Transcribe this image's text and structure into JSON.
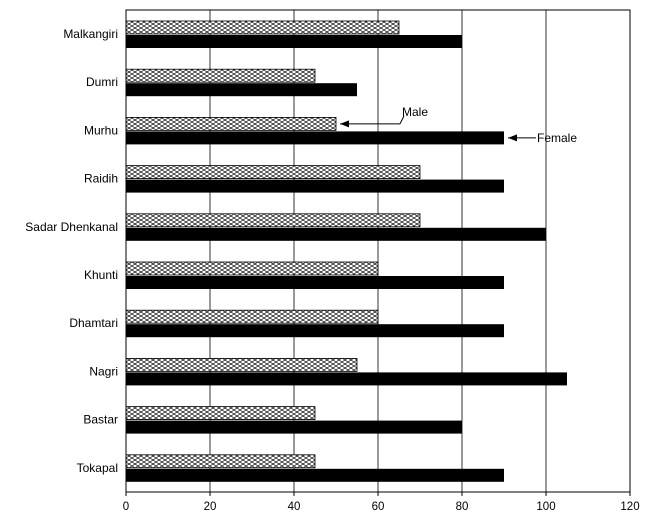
{
  "chart_data": {
    "type": "bar",
    "orientation": "horizontal",
    "categories": [
      "Malkangiri",
      "Dumri",
      "Murhu",
      "Raidih",
      "Sadar Dhenkanal",
      "Khunti",
      "Dhamtari",
      "Nagri",
      "Bastar",
      "Tokapal"
    ],
    "series": [
      {
        "name": "Male",
        "values": [
          65,
          45,
          50,
          70,
          70,
          60,
          60,
          55,
          45,
          45
        ],
        "fill": "pattern",
        "color": "#000000"
      },
      {
        "name": "Female",
        "values": [
          80,
          55,
          90,
          90,
          100,
          90,
          90,
          105,
          80,
          90
        ],
        "fill": "solid",
        "color": "#000000"
      }
    ],
    "xlim": [
      0,
      120
    ],
    "xticks": [
      0,
      20,
      40,
      60,
      80,
      100,
      120
    ],
    "grid": "vertical",
    "legend": "annotations",
    "annotations": [
      {
        "text": "Male",
        "target_series": "Male",
        "target_category": "Murhu"
      },
      {
        "text": "Female",
        "target_series": "Female",
        "target_category": "Murhu"
      }
    ]
  }
}
